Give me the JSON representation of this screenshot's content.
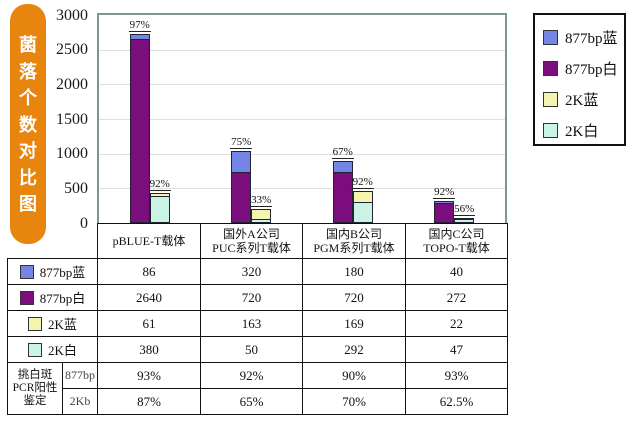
{
  "title": {
    "text": "菌落个数对比图"
  },
  "colors": {
    "accent_orange": "#e8850e",
    "series_blue_877": "#7486e4",
    "series_purple_877": "#7c0d7c",
    "series_yellow_2k": "#f4f4ae",
    "series_cyan_2k": "#c9f4e4",
    "plot_border": "#7e9595",
    "grid_line": "#e3dede",
    "table_border": "#111111"
  },
  "chart_data": {
    "type": "bar",
    "stacked": true,
    "title": "菌落个数对比图",
    "xlabel": "",
    "ylabel": "菌落个数",
    "ylim": [
      0,
      3000
    ],
    "yticks": [
      0,
      500,
      1000,
      1500,
      2000,
      2500,
      3000
    ],
    "grid": true,
    "legend_position": "top-right",
    "categories": [
      "pBLUE-T载体",
      "国外A公司\nPUC系列T载体",
      "国内B公司\nPGM系列T载体",
      "国内C公司\nTOPO-T载体"
    ],
    "series": [
      {
        "name": "877bp蓝",
        "color": "#7486e4",
        "values": [
          86,
          320,
          180,
          40
        ]
      },
      {
        "name": "877bp白",
        "color": "#7c0d7c",
        "values": [
          2640,
          720,
          720,
          272
        ]
      },
      {
        "name": "2K蓝",
        "color": "#f4f4ae",
        "values": [
          61,
          163,
          169,
          22
        ]
      },
      {
        "name": "2K白",
        "color": "#c9f4e4",
        "values": [
          380,
          50,
          292,
          47
        ]
      }
    ],
    "pairs": [
      {
        "name": "877bp",
        "bottom_series": "877bp白",
        "top_series": "877bp蓝",
        "percent_labels": [
          "97%",
          "75%",
          "67%",
          "92%"
        ]
      },
      {
        "name": "2K",
        "bottom_series": "2K白",
        "top_series": "2K蓝",
        "percent_labels": [
          "92%",
          "33%",
          "92%",
          "56%"
        ]
      }
    ]
  },
  "legend": {
    "items": [
      {
        "label": "877bp蓝",
        "color": "#7486e4"
      },
      {
        "label": "877bp白",
        "color": "#7c0d7c"
      },
      {
        "label": "2K蓝",
        "color": "#f4f4ae"
      },
      {
        "label": "2K白",
        "color": "#c9f4e4"
      }
    ]
  },
  "table": {
    "rows": [
      {
        "label": "877bp蓝",
        "swatch": "#7486e4",
        "values": [
          "86",
          "320",
          "180",
          "40"
        ]
      },
      {
        "label": "877bp白",
        "swatch": "#7c0d7c",
        "values": [
          "2640",
          "720",
          "720",
          "272"
        ]
      },
      {
        "label": "2K蓝",
        "swatch": "#f4f4ae",
        "values": [
          "61",
          "163",
          "169",
          "22"
        ]
      },
      {
        "label": "2K白",
        "swatch": "#c9f4e4",
        "values": [
          "380",
          "50",
          "292",
          "47"
        ]
      }
    ],
    "pcr_section": {
      "label_lines": [
        "挑白斑",
        "PCR阳性",
        "鉴定"
      ],
      "rows": [
        {
          "sub": "877bp",
          "values": [
            "93%",
            "92%",
            "90%",
            "93%"
          ]
        },
        {
          "sub": "2Kb",
          "values": [
            "87%",
            "65%",
            "70%",
            "62.5%"
          ]
        }
      ]
    }
  }
}
